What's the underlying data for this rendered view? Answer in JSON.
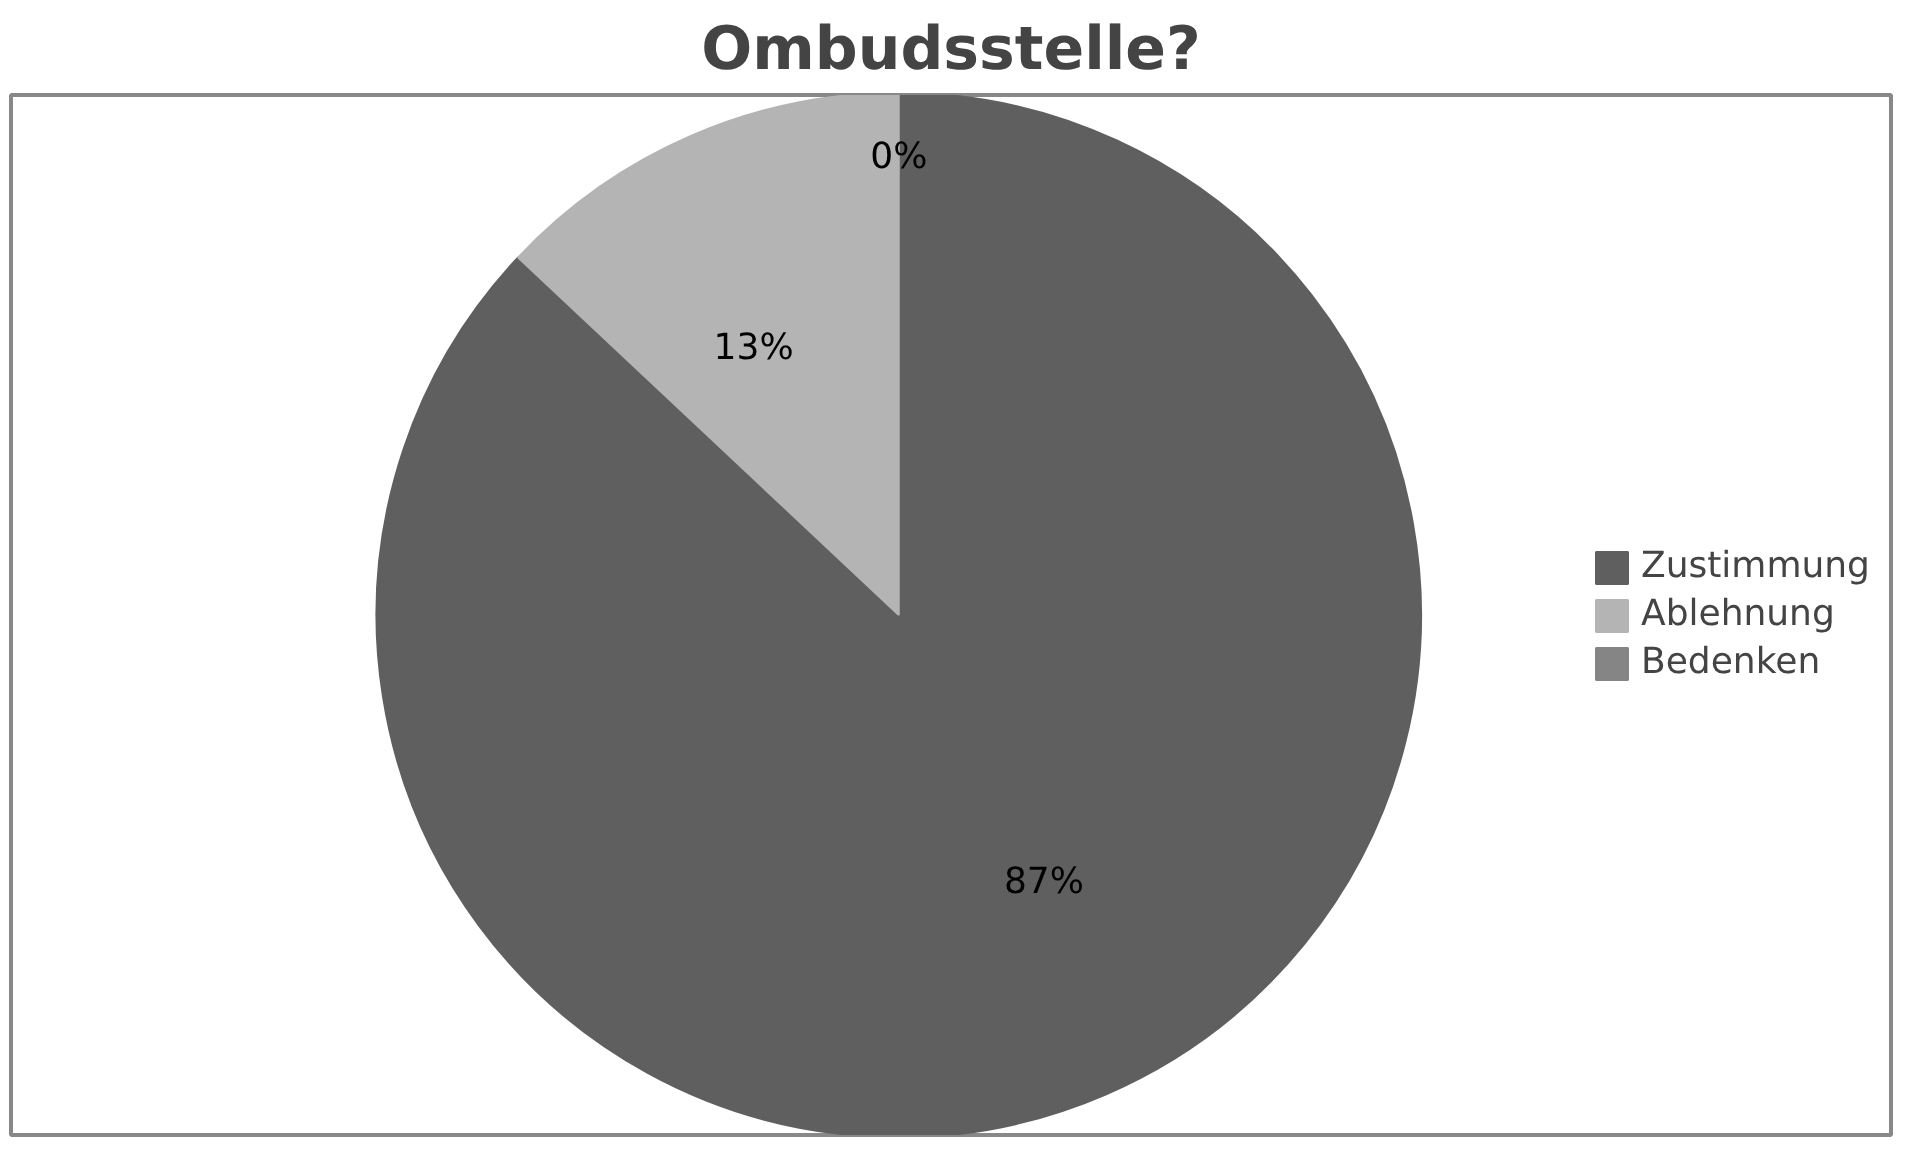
{
  "chart_data": {
    "type": "pie",
    "title": "Ombudsstelle?",
    "categories": [
      "Zustimmung",
      "Ablehnung",
      "Bedenken"
    ],
    "values": [
      87,
      13,
      0
    ],
    "colors": [
      "#5f5f5f",
      "#b4b4b4",
      "#858585"
    ],
    "value_labels": [
      "87%",
      "13%",
      "0%"
    ],
    "legend": "right"
  }
}
